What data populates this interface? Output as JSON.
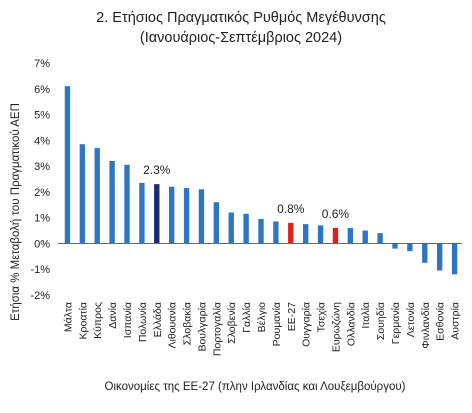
{
  "chart_data": {
    "type": "bar",
    "title": "2. Ετήσιος Πραγματικός Ρυθμός Μεγέθυνσης",
    "subtitle": "(Ιανουάριος-Σεπτέμβριος 2024)",
    "xlabel": "Οικονομίες της ΕΕ-27 (πλην Ιρλανδίας και Λουξεμβούργου)",
    "ylabel": "Ετήσια % Μεταβολή του Πραγματικού ΑΕΠ",
    "ylim": [
      -2,
      7
    ],
    "yticks": [
      "-2%",
      "-1%",
      "0%",
      "1%",
      "2%",
      "3%",
      "4%",
      "5%",
      "6%",
      "7%"
    ],
    "grid": false,
    "categories": [
      "Μάλτα",
      "Κροατία",
      "Κύπρος",
      "Δανία",
      "Ισπανία",
      "Πολωνία",
      "Ελλάδα",
      "Λιθουανία",
      "Σλοβακία",
      "Βουλγαρία",
      "Πορτογαλία",
      "Σλοβενία",
      "Γαλλία",
      "Βέλγιο",
      "Ρουμανία",
      "ΕΕ-27",
      "Ουγγαρία",
      "Τσεχία",
      "Ευρωζώνη",
      "Ολλανδία",
      "Ιταλία",
      "Σουηδία",
      "Γερμανία",
      "Λετονία",
      "Φινλανδία",
      "Εσθονία",
      "Αυστρία"
    ],
    "values": [
      6.1,
      3.85,
      3.7,
      3.2,
      3.05,
      2.35,
      2.3,
      2.2,
      2.15,
      2.1,
      1.6,
      1.2,
      1.15,
      0.95,
      0.85,
      0.8,
      0.75,
      0.7,
      0.6,
      0.6,
      0.5,
      0.4,
      -0.2,
      -0.3,
      -0.75,
      -1.05,
      -1.2
    ],
    "colors": {
      "default": "#2e75c4",
      "highlight_greece": "#1a2a6e",
      "highlight_eu": "#e0201b"
    },
    "bar_colors": [
      "default",
      "default",
      "default",
      "default",
      "default",
      "default",
      "highlight_greece",
      "default",
      "default",
      "default",
      "default",
      "default",
      "default",
      "default",
      "default",
      "highlight_eu",
      "default",
      "default",
      "highlight_eu",
      "default",
      "default",
      "default",
      "default",
      "default",
      "default",
      "default",
      "default"
    ],
    "data_labels": [
      {
        "index": 6,
        "text": "2.3%"
      },
      {
        "index": 15,
        "text": "0.8%"
      },
      {
        "index": 18,
        "text": "0.6%"
      }
    ]
  }
}
